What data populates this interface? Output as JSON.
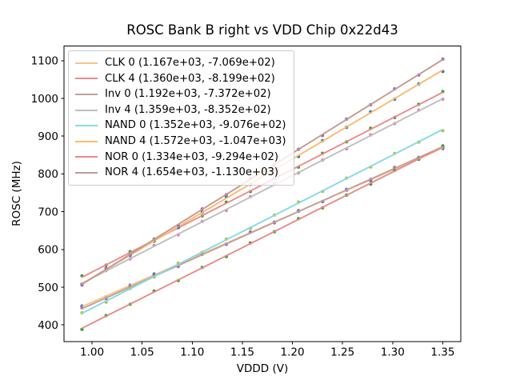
{
  "chart_data": {
    "type": "scatter",
    "title": "ROSC Bank B right vs VDD Chip 0x22d43",
    "xlabel": "VDDD (V)",
    "ylabel": "ROSC (MHz)",
    "xlim": [
      0.972,
      1.368
    ],
    "ylim": [
      355.4,
      1138.6
    ],
    "xtick_values": [
      1.0,
      1.05,
      1.1,
      1.15,
      1.2,
      1.25,
      1.3,
      1.35
    ],
    "xtick_labels": [
      "1.00",
      "1.05",
      "1.10",
      "1.15",
      "1.20",
      "1.25",
      "1.30",
      "1.35"
    ],
    "ytick_values": [
      400,
      500,
      600,
      700,
      800,
      900,
      1000,
      1100
    ],
    "ytick_labels": [
      "400",
      "500",
      "600",
      "700",
      "800",
      "900",
      "1000",
      "1100"
    ],
    "grid": false,
    "legend_position": "upper-left",
    "x": [
      0.99,
      1.014,
      1.038,
      1.062,
      1.086,
      1.11,
      1.134,
      1.158,
      1.182,
      1.206,
      1.23,
      1.254,
      1.278,
      1.302,
      1.326,
      1.35
    ],
    "series": [
      {
        "name": "CLK 0",
        "legend_label": "CLK 0 (1.167e+03, -7.069e+02)",
        "fit_slope": 1167.0,
        "fit_intercept": -706.9,
        "line_color": "#f7c28b",
        "marker_color": "#3579b1",
        "values": [
          450.2,
          474.3,
          505.3,
          534.9,
          559.0,
          589.1,
          613.7,
          645.8,
          672.1,
          702.7,
          726.6,
          757.2,
          782.1,
          813.6,
          843.5,
          867.3
        ]
      },
      {
        "name": "CLK 4",
        "legend_label": "CLK 4 (1.360e+03, -8.199e+02)",
        "fit_slope": 1360.0,
        "fit_intercept": -819.9,
        "line_color": "#ea8c8a",
        "marker_color": "#2ca02c",
        "values": [
          529.7,
          558.1,
          593.9,
          621.8,
          658.5,
          688.9,
          725.2,
          753.3,
          788.1,
          818.0,
          854.7,
          884.9,
          920.7,
          949.4,
          984.4,
          1018.1
        ]
      },
      {
        "name": "Inv 0",
        "legend_label": "Inv 0 (1.192e+03, -7.372e+02)",
        "fit_slope": 1192.0,
        "fit_intercept": -737.2,
        "line_color": "#c2a29a",
        "marker_color": "#9467bd",
        "values": [
          445.3,
          469.7,
          500.7,
          530.7,
          554.8,
          587.0,
          613.6,
          645.8,
          670.4,
          700.7,
          726.8,
          759.1,
          785.6,
          816.9,
          841.7,
          872.7
        ]
      },
      {
        "name": "Inv 4",
        "legend_label": "Inv 4 (1.359e+03, -8.352e+02)",
        "fit_slope": 1359.0,
        "fit_intercept": -835.2,
        "line_color": "#bebebe",
        "marker_color": "#e377c2",
        "values": [
          508.0,
          544.3,
          574.7,
          610.4,
          638.8,
          674.1,
          703.3,
          739.7,
          773.9,
          802.6,
          836.8,
          866.6,
          903.3,
          933.3,
          968.9,
          998.0
        ]
      },
      {
        "name": "NAND 0",
        "legend_label": "NAND 0 (1.352e+03, -9.076e+02)",
        "fit_slope": 1352.0,
        "fit_intercept": -907.6,
        "line_color": "#85dae6",
        "marker_color": "#bcbd22",
        "values": [
          432.1,
          460.6,
          496.6,
          526.8,
          563.3,
          592.6,
          627.5,
          655.8,
          691.1,
          725.3,
          753.8,
          788.7,
          818.3,
          854.2,
          884.4,
          914.7
        ]
      },
      {
        "name": "NAND 4",
        "legend_label": "NAND 4 (1.572e+03, -1.047e+03)",
        "fit_slope": 1572.0,
        "fit_intercept": -1047.0,
        "line_color": "#fcba70",
        "marker_color": "#1f77b4",
        "values": [
          507.7,
          549.2,
          583.8,
          624.3,
          657.8,
          698.6,
          738.6,
          772.2,
          811.5,
          846.2,
          887.9,
          923.5,
          964.1,
          998.0,
          1038.1,
          1071.4
        ]
      },
      {
        "name": "NOR 0",
        "legend_label": "NOR 0 (1.334e+03, -9.294e+02)",
        "fit_slope": 1334.0,
        "fit_intercept": -929.4,
        "line_color": "#e98a88",
        "marker_color": "#2ca02c",
        "values": [
          388.5,
          424.7,
          454.7,
          489.8,
          517.6,
          552.2,
          581.1,
          617.0,
          647.0,
          681.5,
          710.2,
          743.9,
          772.9,
          809.4,
          838.5,
          874.2
        ]
      },
      {
        "name": "NOR 4",
        "legend_label": "NOR 4 (1.654e+03, -1.130e+03)",
        "fit_slope": 1654.0,
        "fit_intercept": -1130.0,
        "line_color": "#c39a91",
        "marker_color": "#9467bd",
        "values": [
          505.6,
          549.8,
          585.7,
          627.3,
          663.7,
          707.3,
          744.9,
          787.6,
          823.5,
          865.3,
          901.6,
          945.2,
          983.3,
          1025.4,
          1061.8,
          1104.0
        ]
      }
    ]
  }
}
